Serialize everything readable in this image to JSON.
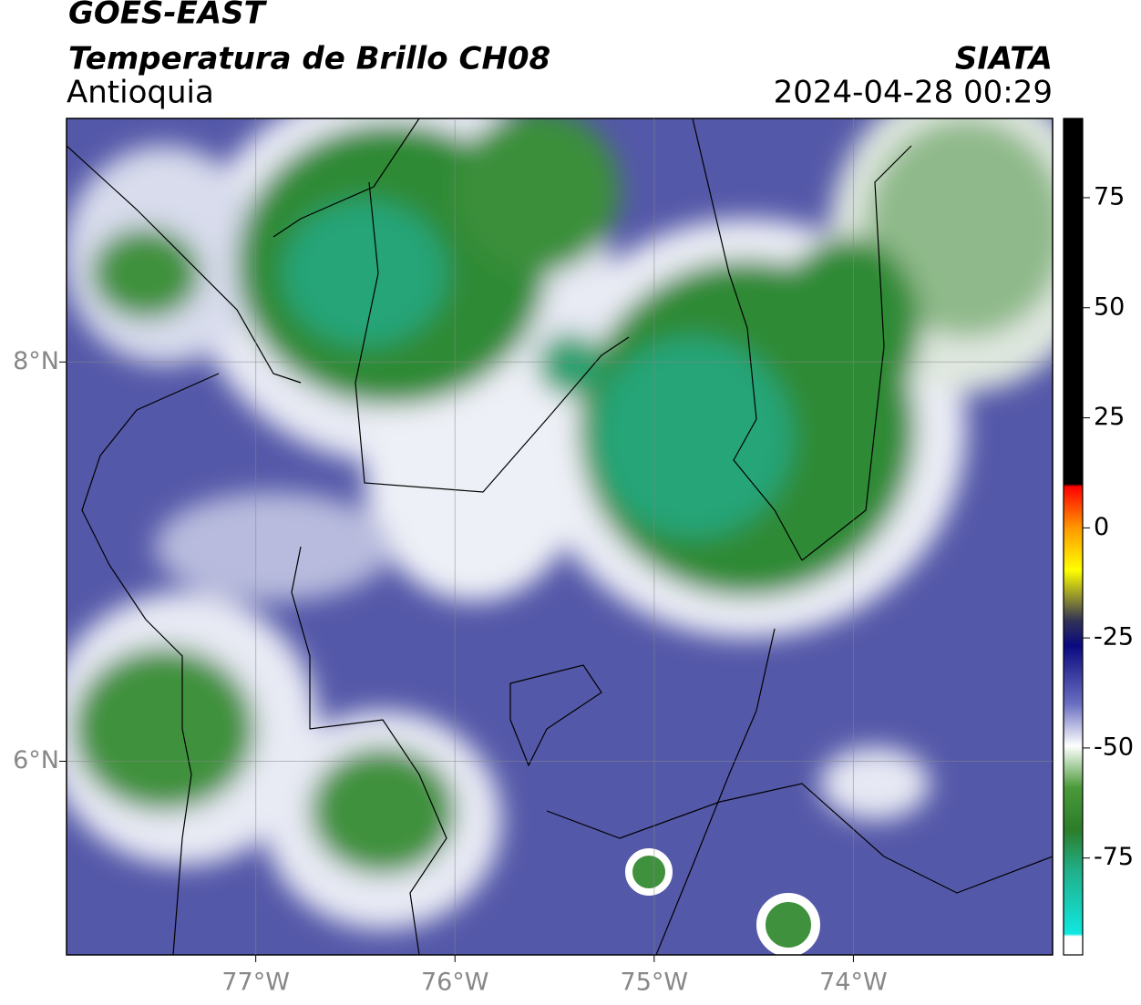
{
  "header": {
    "title": "GOES-EAST",
    "subtitle": "Temperatura de Brillo CH08",
    "source": "SIATA",
    "region": "Antioquia",
    "datetime": "2024-04-28 00:29"
  },
  "map": {
    "xlim": [
      -77.95,
      -73.0
    ],
    "ylim": [
      5.03,
      9.22
    ],
    "xticks": [
      {
        "value": -77,
        "label": "77°W"
      },
      {
        "value": -76,
        "label": "76°W"
      },
      {
        "value": -75,
        "label": "75°W"
      },
      {
        "value": -74,
        "label": "74°W"
      }
    ],
    "yticks": [
      {
        "value": 6,
        "label": "6°N"
      },
      {
        "value": 8,
        "label": "8°N"
      }
    ],
    "grid": true
  },
  "colorbar": {
    "lim": [
      -97,
      93
    ],
    "ticks": [
      75,
      50,
      25,
      0,
      -25,
      -50,
      -75
    ]
  }
}
